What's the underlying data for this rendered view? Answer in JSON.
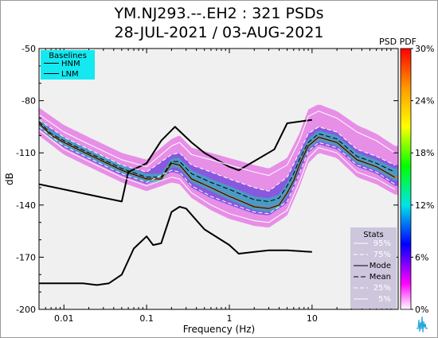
{
  "chart_data": {
    "type": "line",
    "title": "YM.NJ293.--.EH2 : 321 PSDs",
    "subtitle": "28-JUL-2021 / 03-AUG-2021",
    "xlabel": "Frequency (Hz)",
    "ylabel": "dB",
    "x_scale": "log",
    "xlim": [
      0.005,
      110
    ],
    "ylim": [
      -200,
      -50
    ],
    "x_ticks": [
      0.01,
      0.1,
      1,
      10
    ],
    "x_tick_labels": [
      "0.01",
      "0.1",
      "1",
      "10"
    ],
    "y_ticks": [
      -50,
      -80,
      -110,
      -140,
      -170,
      -200
    ],
    "y_tick_labels": [
      "-50",
      "-80",
      "-110",
      "-140",
      "-170",
      "-200"
    ],
    "grid": false,
    "background_color": "#f0f0f0",
    "colorbar": {
      "label": "PSD PDF",
      "ticks": [
        "30%",
        "24%",
        "18%",
        "12%",
        "6%",
        "0%"
      ],
      "colors": [
        "#ff0000",
        "#ff9900",
        "#ffff00",
        "#00ff00",
        "#00e5e5",
        "#0000ff",
        "#ff00ff",
        "#ffffff"
      ]
    },
    "legend_baselines": {
      "title": "Baselines",
      "placement": "top-left",
      "background": "#14e8f0",
      "entries": [
        "HNM",
        "LNM"
      ]
    },
    "legend_stats": {
      "title": "Stats",
      "placement": "bottom-right",
      "background": "#cdc6dd",
      "entries": [
        "95%",
        "75%",
        "Mode",
        "Mean",
        "25%",
        "5%"
      ]
    },
    "series": [
      {
        "name": "HNM",
        "color": "#000000",
        "x": [
          0.005,
          0.05,
          0.06,
          0.1,
          0.15,
          0.22,
          0.35,
          0.5,
          1.0,
          1.3,
          3.5,
          5.0,
          10.0
        ],
        "y": [
          -128,
          -138,
          -121,
          -116,
          -103,
          -95,
          -104,
          -110,
          -118,
          -120,
          -108,
          -93,
          -91
        ]
      },
      {
        "name": "LNM",
        "color": "#000000",
        "x": [
          0.005,
          0.017,
          0.025,
          0.035,
          0.05,
          0.07,
          0.1,
          0.12,
          0.15,
          0.2,
          0.25,
          0.3,
          0.5,
          1.0,
          1.3,
          2.0,
          3.0,
          5.0,
          10.0
        ],
        "y": [
          -185,
          -185,
          -186,
          -185,
          -180,
          -165,
          -158,
          -163,
          -162,
          -144,
          -141,
          -142,
          -154,
          -163,
          -168,
          -167,
          -166,
          -166,
          -167
        ]
      },
      {
        "name": "Mode",
        "color": "#000000",
        "x": [
          0.005,
          0.007,
          0.01,
          0.02,
          0.05,
          0.1,
          0.15,
          0.2,
          0.25,
          0.35,
          0.6,
          1.0,
          2.0,
          3.0,
          4.0,
          5.0,
          6.0,
          7.0,
          9.0,
          12.0,
          20.0,
          35.0,
          60.0,
          100.0
        ],
        "y": [
          -93,
          -100,
          -104,
          -111,
          -120,
          -125,
          -125,
          -116,
          -117,
          -125,
          -130,
          -135,
          -141,
          -142,
          -140,
          -133,
          -126,
          -117,
          -106,
          -101,
          -104,
          -114,
          -118,
          -124
        ]
      },
      {
        "name": "Mean",
        "color": "#000000",
        "x": [
          0.005,
          0.007,
          0.01,
          0.02,
          0.05,
          0.1,
          0.15,
          0.2,
          0.25,
          0.35,
          0.6,
          1.0,
          2.0,
          3.0,
          4.0,
          5.0,
          6.0,
          7.0,
          9.0,
          12.0,
          20.0,
          35.0,
          60.0,
          100.0
        ],
        "y": [
          -92,
          -99,
          -103,
          -110,
          -119,
          -124,
          -124,
          -115,
          -115,
          -122,
          -127,
          -131,
          -137,
          -138,
          -136,
          -129,
          -122,
          -114,
          -104,
          -99,
          -102,
          -112,
          -116,
          -121
        ]
      },
      {
        "name": "95%",
        "color": "#ffffff",
        "x": [
          0.005,
          0.01,
          0.02,
          0.05,
          0.1,
          0.2,
          0.25,
          0.35,
          0.6,
          1.0,
          2.0,
          3.0,
          5.0,
          7.0,
          9.0,
          12.0,
          20.0,
          35.0,
          60.0,
          100.0
        ],
        "y": [
          -88,
          -98,
          -105,
          -114,
          -118,
          -106,
          -104,
          -111,
          -114,
          -117,
          -121,
          -123,
          -117,
          -103,
          -89,
          -86,
          -90,
          -98,
          -103,
          -110
        ]
      },
      {
        "name": "75%",
        "color": "#ffffff",
        "x": [
          0.005,
          0.01,
          0.02,
          0.05,
          0.1,
          0.2,
          0.25,
          0.35,
          0.6,
          1.0,
          2.0,
          3.0,
          5.0,
          7.0,
          9.0,
          12.0,
          20.0,
          35.0,
          60.0,
          100.0
        ],
        "y": [
          -91,
          -101,
          -108,
          -117,
          -121,
          -111,
          -110,
          -117,
          -121,
          -125,
          -130,
          -132,
          -124,
          -110,
          -99,
          -95,
          -98,
          -108,
          -112,
          -117
        ]
      },
      {
        "name": "25%",
        "color": "#ffffff",
        "x": [
          0.005,
          0.01,
          0.02,
          0.05,
          0.1,
          0.2,
          0.25,
          0.35,
          0.6,
          1.0,
          2.0,
          3.0,
          5.0,
          7.0,
          9.0,
          12.0,
          20.0,
          35.0,
          60.0,
          100.0
        ],
        "y": [
          -95,
          -106,
          -113,
          -122,
          -127,
          -120,
          -121,
          -129,
          -135,
          -139,
          -144,
          -145,
          -138,
          -122,
          -109,
          -104,
          -107,
          -117,
          -121,
          -128
        ]
      },
      {
        "name": "5%",
        "color": "#ffffff",
        "x": [
          0.005,
          0.01,
          0.02,
          0.05,
          0.1,
          0.2,
          0.25,
          0.35,
          0.6,
          1.0,
          2.0,
          3.0,
          5.0,
          7.0,
          9.0,
          12.0,
          20.0,
          35.0,
          60.0,
          100.0
        ],
        "y": [
          -97,
          -108,
          -115,
          -124,
          -129,
          -124,
          -125,
          -133,
          -140,
          -145,
          -149,
          -150,
          -143,
          -127,
          -113,
          -107,
          -110,
          -121,
          -125,
          -131
        ]
      }
    ]
  }
}
